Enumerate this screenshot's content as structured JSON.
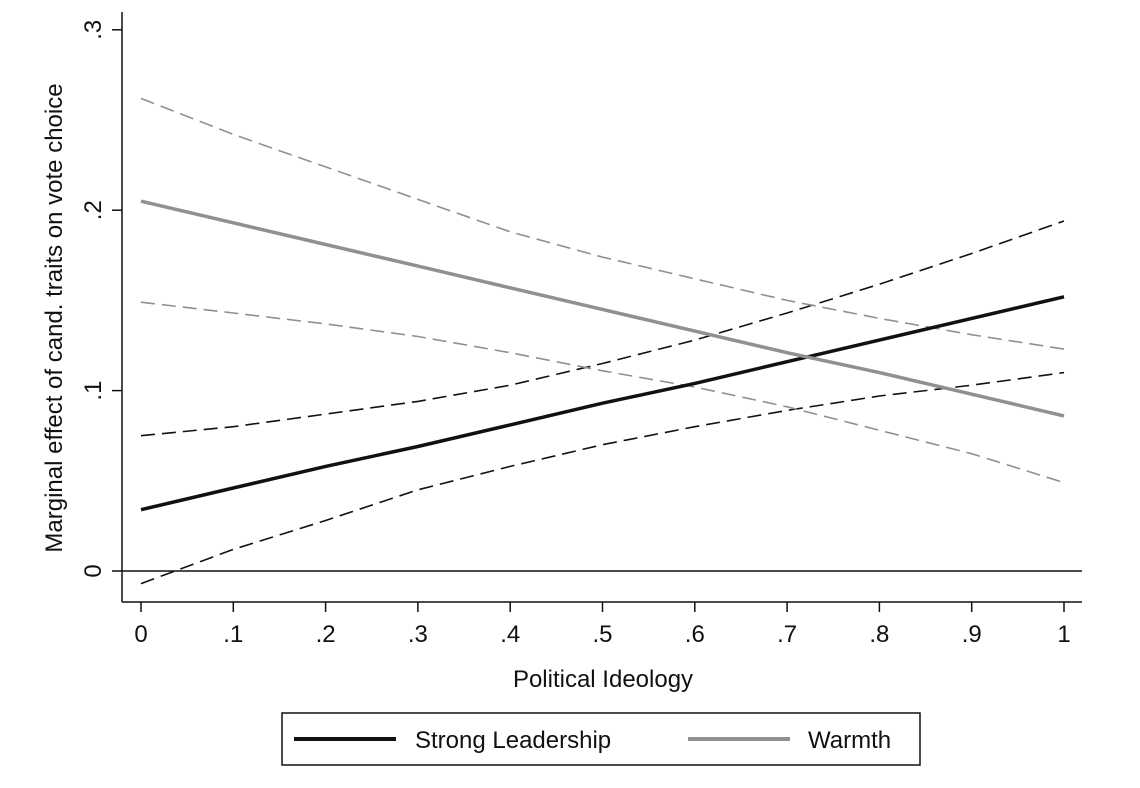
{
  "chart_data": {
    "type": "line",
    "title": "",
    "xlabel": "Political Ideology",
    "ylabel": "Marginal effect of cand. traits on vote choice",
    "xlim": [
      -0.02,
      1.02
    ],
    "ylim": [
      -0.018,
      0.31
    ],
    "x_ticks": [
      0,
      0.1,
      0.2,
      0.3,
      0.4,
      0.5,
      0.6,
      0.7,
      0.8,
      0.9,
      1
    ],
    "x_tick_labels": [
      "0",
      ".1",
      ".2",
      ".3",
      ".4",
      ".5",
      ".6",
      ".7",
      ".8",
      ".9",
      "1"
    ],
    "y_ticks": [
      0,
      0.1,
      0.2,
      0.3
    ],
    "y_tick_labels": [
      "0",
      ".1",
      ".2",
      ".3"
    ],
    "reference_line_y": 0,
    "grid": false,
    "legend_position": "bottom",
    "x": [
      0,
      0.1,
      0.2,
      0.3,
      0.4,
      0.5,
      0.6,
      0.7,
      0.8,
      0.9,
      1
    ],
    "series": [
      {
        "name": "Strong Leadership",
        "color": "#111111",
        "values": [
          0.034,
          0.046,
          0.058,
          0.069,
          0.081,
          0.093,
          0.104,
          0.116,
          0.128,
          0.14,
          0.152
        ],
        "ci_lower": [
          -0.007,
          0.012,
          0.028,
          0.045,
          0.058,
          0.07,
          0.08,
          0.089,
          0.097,
          0.103,
          0.11
        ],
        "ci_upper": [
          0.075,
          0.08,
          0.087,
          0.094,
          0.103,
          0.115,
          0.128,
          0.143,
          0.159,
          0.176,
          0.194
        ]
      },
      {
        "name": "Warmth",
        "color": "#909090",
        "values": [
          0.205,
          0.193,
          0.181,
          0.169,
          0.157,
          0.145,
          0.133,
          0.121,
          0.11,
          0.098,
          0.086
        ],
        "ci_lower": [
          0.149,
          0.143,
          0.137,
          0.13,
          0.121,
          0.111,
          0.102,
          0.091,
          0.078,
          0.065,
          0.049
        ],
        "ci_upper": [
          0.262,
          0.242,
          0.224,
          0.206,
          0.188,
          0.174,
          0.162,
          0.15,
          0.14,
          0.131,
          0.123
        ]
      }
    ]
  }
}
